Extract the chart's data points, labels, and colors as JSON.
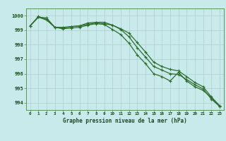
{
  "xlabel": "Graphe pression niveau de la mer (hPa)",
  "background_color": "#c8eaea",
  "grid_color": "#b0d0d0",
  "line_color": "#2d6e2d",
  "x": [
    0,
    1,
    2,
    3,
    4,
    5,
    6,
    7,
    8,
    9,
    10,
    11,
    12,
    13,
    14,
    15,
    16,
    17,
    18,
    19,
    20,
    21,
    22,
    23
  ],
  "line1": [
    999.3,
    999.9,
    999.85,
    999.2,
    999.2,
    999.25,
    999.3,
    999.5,
    999.55,
    999.55,
    999.35,
    999.1,
    998.8,
    998.15,
    997.5,
    996.8,
    996.5,
    996.3,
    996.2,
    995.8,
    995.4,
    995.1,
    994.4,
    993.8
  ],
  "line2": [
    999.3,
    999.9,
    999.7,
    999.2,
    999.1,
    999.15,
    999.2,
    999.35,
    999.45,
    999.4,
    999.05,
    998.7,
    998.1,
    997.3,
    996.7,
    996.0,
    995.8,
    995.5,
    996.1,
    995.5,
    995.1,
    994.85,
    994.35,
    993.75
  ],
  "line3": [
    999.3,
    999.95,
    999.75,
    999.2,
    999.15,
    999.25,
    999.3,
    999.4,
    999.5,
    999.45,
    999.35,
    999.05,
    998.55,
    997.8,
    997.15,
    996.5,
    996.25,
    996.0,
    995.95,
    995.6,
    995.25,
    994.95,
    994.25,
    993.75
  ],
  "ylim": [
    993.5,
    1000.5
  ],
  "yticks": [
    994,
    995,
    996,
    997,
    998,
    999,
    1000
  ],
  "xlim": [
    -0.5,
    23.5
  ],
  "xticks": [
    0,
    1,
    2,
    3,
    4,
    5,
    6,
    7,
    8,
    9,
    10,
    11,
    12,
    13,
    14,
    15,
    16,
    17,
    18,
    19,
    20,
    21,
    22,
    23
  ]
}
